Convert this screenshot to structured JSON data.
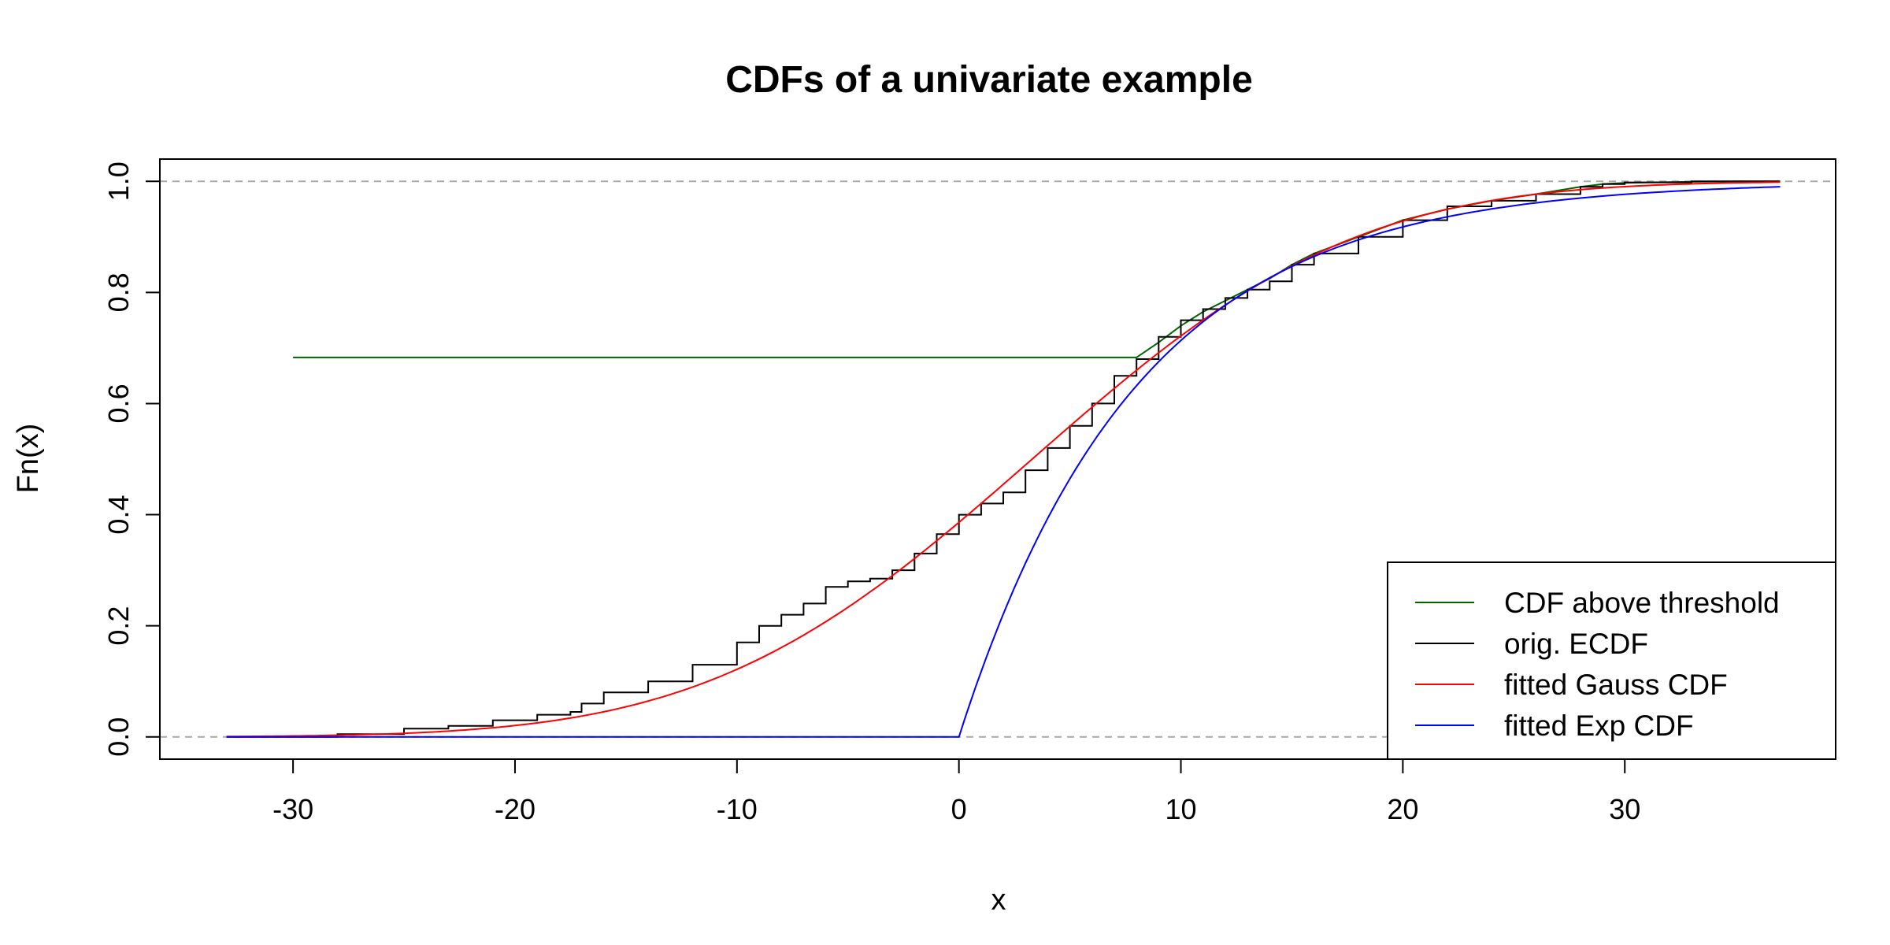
{
  "chart_data": {
    "type": "line",
    "title": "CDFs of a univariate example",
    "xlabel": "x",
    "ylabel": "Fn(x)",
    "xlim": [
      -36,
      39.5
    ],
    "ylim": [
      -0.04,
      1.04
    ],
    "x_ticks": [
      -30,
      -20,
      -10,
      0,
      10,
      20,
      30
    ],
    "x_tick_labels": [
      "-30",
      "-20",
      "-10",
      "0",
      "10",
      "20",
      "30"
    ],
    "y_ticks": [
      0.0,
      0.2,
      0.4,
      0.6,
      0.8,
      1.0
    ],
    "y_tick_labels": [
      "0.0",
      "0.2",
      "0.4",
      "0.6",
      "0.8",
      "1.0"
    ],
    "reference_lines": [
      0,
      1
    ],
    "legend_position": "bottom-right",
    "series": [
      {
        "name": "CDF above threshold",
        "color": "#006400",
        "style": "line",
        "x": [
          -30,
          8,
          9,
          10,
          11,
          12,
          13,
          14,
          15,
          16,
          17,
          18,
          20,
          22,
          24,
          26,
          28,
          29,
          30,
          31,
          33,
          35,
          37
        ],
        "y": [
          0.683,
          0.683,
          0.71,
          0.74,
          0.765,
          0.785,
          0.805,
          0.825,
          0.85,
          0.87,
          0.885,
          0.9,
          0.93,
          0.95,
          0.965,
          0.977,
          0.99,
          0.995,
          0.997,
          0.998,
          0.999,
          1.0,
          1.0
        ]
      },
      {
        "name": "orig. ECDF",
        "color": "#000000",
        "style": "step",
        "x": [
          -33,
          -28,
          -25,
          -23,
          -21,
          -19,
          -17.5,
          -17,
          -16,
          -14,
          -12,
          -10,
          -9,
          -8,
          -7,
          -6,
          -5,
          -4,
          -3,
          -2,
          -1,
          0,
          1,
          2,
          3,
          4,
          5,
          6,
          7,
          8,
          9,
          10,
          11,
          12,
          13,
          14,
          15,
          16,
          18,
          20,
          22,
          24,
          26,
          28,
          29,
          30,
          33,
          36,
          37
        ],
        "y": [
          0.0,
          0.005,
          0.015,
          0.02,
          0.03,
          0.04,
          0.045,
          0.06,
          0.08,
          0.1,
          0.13,
          0.17,
          0.2,
          0.22,
          0.24,
          0.27,
          0.28,
          0.285,
          0.3,
          0.33,
          0.365,
          0.4,
          0.42,
          0.44,
          0.48,
          0.52,
          0.56,
          0.6,
          0.65,
          0.68,
          0.72,
          0.75,
          0.77,
          0.79,
          0.805,
          0.82,
          0.85,
          0.87,
          0.9,
          0.93,
          0.955,
          0.965,
          0.977,
          0.99,
          0.995,
          0.998,
          1.0,
          1.0,
          1.0
        ]
      },
      {
        "name": "fitted Gauss CDF",
        "color": "#ff0000",
        "style": "line",
        "gauss_mean": 3.3,
        "gauss_sd": 11.4,
        "x_range": [
          -33,
          37
        ]
      },
      {
        "name": "fitted Exp CDF",
        "color": "#0000ff",
        "style": "line",
        "exp_rate": 0.125,
        "exp_start": 0,
        "x_range": [
          -33,
          37
        ]
      }
    ]
  }
}
